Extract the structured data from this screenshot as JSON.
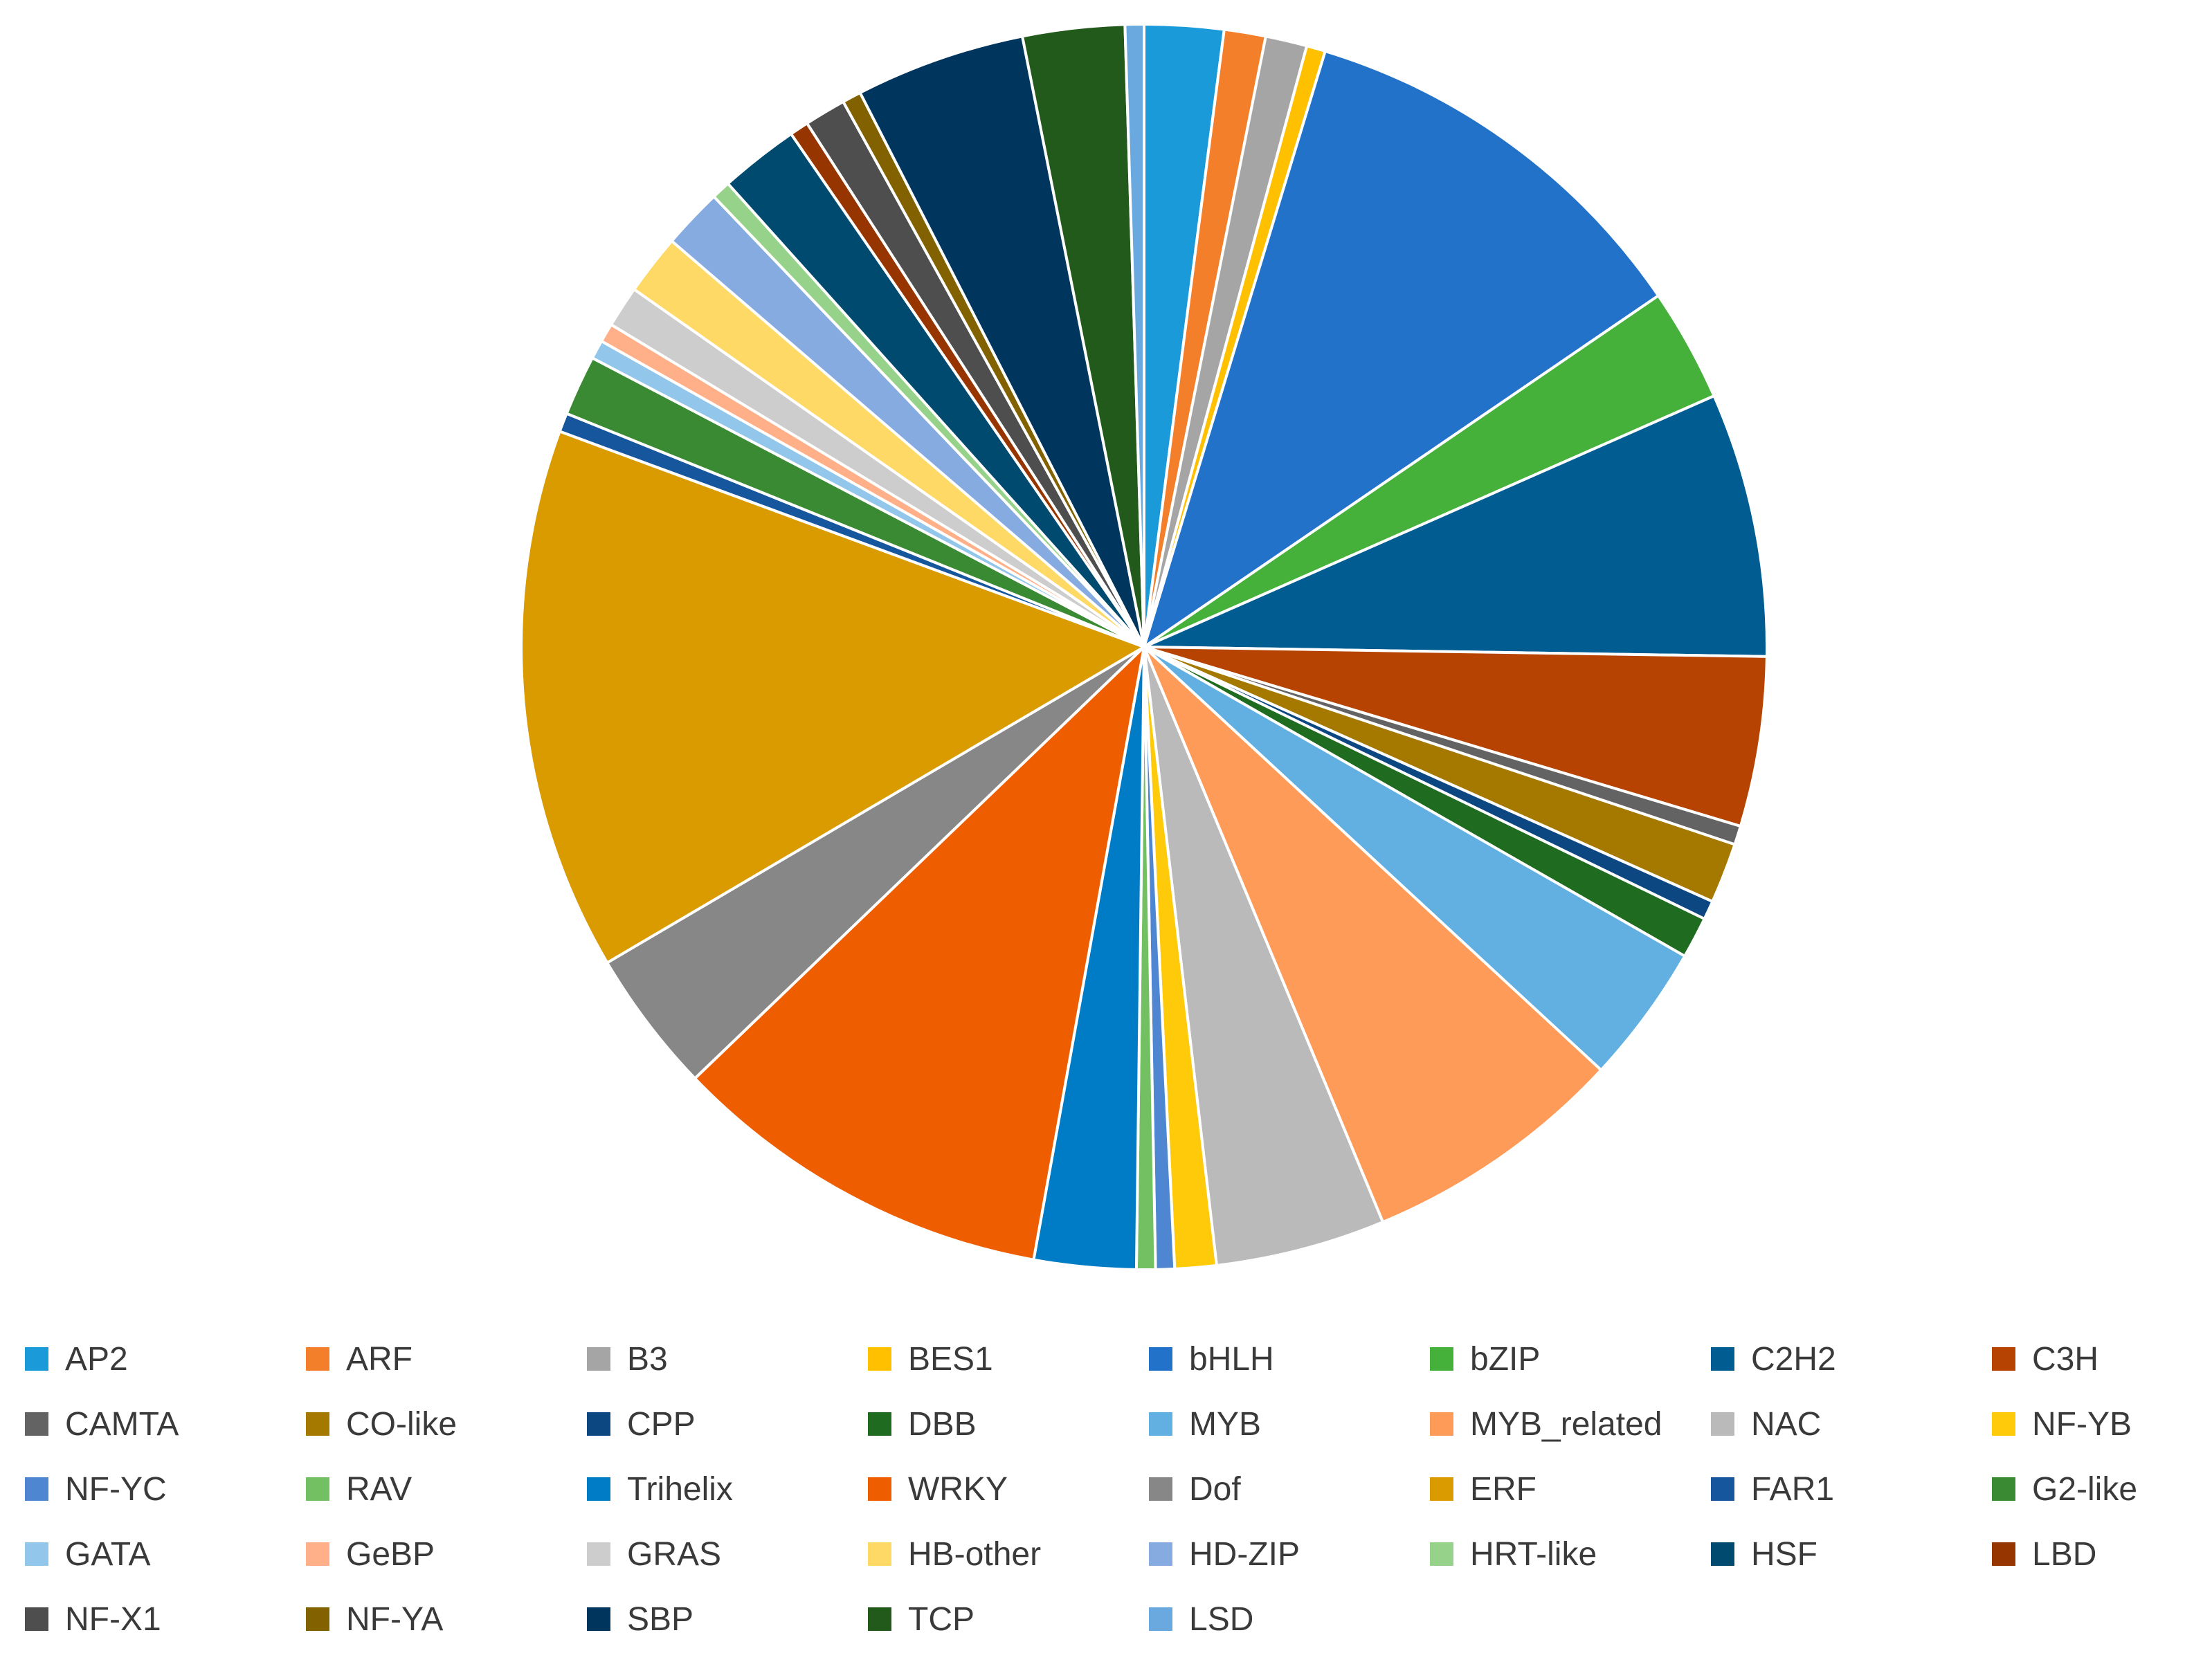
{
  "chart_data": {
    "type": "pie",
    "title": "",
    "legend_position": "bottom",
    "slices": [
      {
        "label": "AP2",
        "value": 2.1,
        "color": "#1a9ad9"
      },
      {
        "label": "ARF",
        "value": 1.1,
        "color": "#f47f2a"
      },
      {
        "label": "B3",
        "value": 1.1,
        "color": "#a5a5a5"
      },
      {
        "label": "BES1",
        "value": 0.5,
        "color": "#ffc000"
      },
      {
        "label": "bHLH",
        "value": 11.0,
        "color": "#2272c9"
      },
      {
        "label": "bZIP",
        "value": 3.0,
        "color": "#45b13b"
      },
      {
        "label": "C2H2",
        "value": 7.0,
        "color": "#005c91"
      },
      {
        "label": "C3H",
        "value": 4.5,
        "color": "#b64301"
      },
      {
        "label": "CAMTA",
        "value": 0.5,
        "color": "#636363"
      },
      {
        "label": "CO-like",
        "value": 1.6,
        "color": "#a57800"
      },
      {
        "label": "CPP",
        "value": 0.5,
        "color": "#0c4782"
      },
      {
        "label": "DBB",
        "value": 1.1,
        "color": "#1f6b1f"
      },
      {
        "label": "MYB",
        "value": 3.7,
        "color": "#62afe2"
      },
      {
        "label": "MYB_related",
        "value": 7.0,
        "color": "#ff9b58"
      },
      {
        "label": "NAC",
        "value": 4.5,
        "color": "#bababa"
      },
      {
        "label": "NF-YB",
        "value": 1.1,
        "color": "#ffca0a"
      },
      {
        "label": "NF-YC",
        "value": 0.5,
        "color": "#4f86d2"
      },
      {
        "label": "RAV",
        "value": 0.5,
        "color": "#73c062"
      },
      {
        "label": "Trihelix",
        "value": 2.7,
        "color": "#007bc5"
      },
      {
        "label": "WRKY",
        "value": 10.2,
        "color": "#ee5e01"
      },
      {
        "label": "Dof",
        "value": 3.8,
        "color": "#878787"
      },
      {
        "label": "ERF",
        "value": 14.4,
        "color": "#d99b00"
      },
      {
        "label": "FAR1",
        "value": 0.5,
        "color": "#15569d"
      },
      {
        "label": "G2-like",
        "value": 1.6,
        "color": "#3a8a33"
      },
      {
        "label": "GATA",
        "value": 0.5,
        "color": "#92c6ea"
      },
      {
        "label": "GeBP",
        "value": 0.5,
        "color": "#ffb088"
      },
      {
        "label": "GRAS",
        "value": 1.1,
        "color": "#cdcdcd"
      },
      {
        "label": "HB-other",
        "value": 1.6,
        "color": "#ffd966"
      },
      {
        "label": "HD-ZIP",
        "value": 1.6,
        "color": "#86abe0"
      },
      {
        "label": "HRT-like",
        "value": 0.5,
        "color": "#97d28a"
      },
      {
        "label": "HSF",
        "value": 2.1,
        "color": "#004a6f"
      },
      {
        "label": "LBD",
        "value": 0.5,
        "color": "#963500"
      },
      {
        "label": "NF-X1",
        "value": 1.1,
        "color": "#4e4e4e"
      },
      {
        "label": "NF-YA",
        "value": 0.5,
        "color": "#826200"
      },
      {
        "label": "SBP",
        "value": 4.5,
        "color": "#00365e"
      },
      {
        "label": "TCP",
        "value": 2.7,
        "color": "#215a1a"
      },
      {
        "label": "LSD",
        "value": 0.5,
        "color": "#6aa9df"
      }
    ]
  }
}
